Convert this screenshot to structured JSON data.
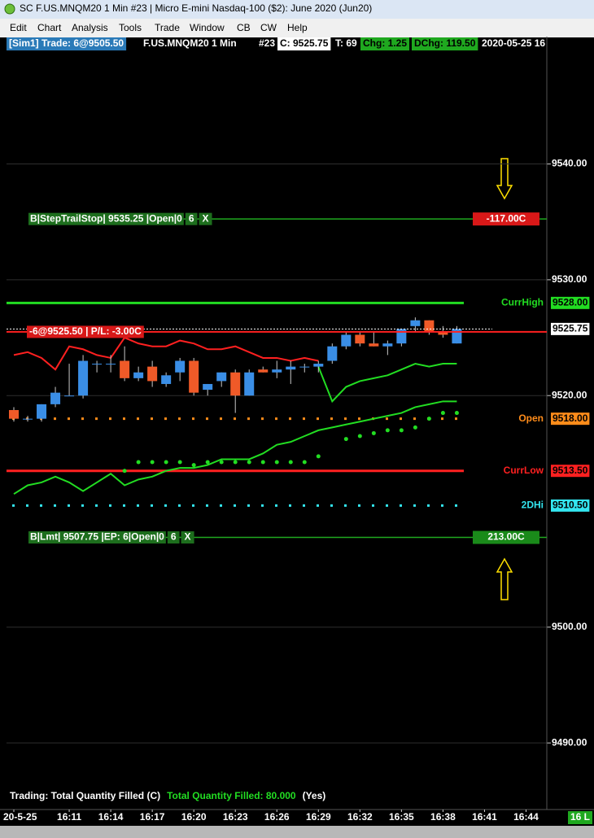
{
  "window": {
    "title": "SC F.US.MNQM20  1 Min   #23 | Micro E-mini Nasdaq-100 ($2): June 2020 (Jun20)",
    "menu": [
      "Edit",
      "Chart",
      "Analysis",
      "Tools",
      "Trade",
      "Window",
      "CB",
      "CW",
      "Help"
    ]
  },
  "header": {
    "account": "[Sim1]  Trade: 6@9505.50",
    "symbol": "F.US.MNQM20  1 Min",
    "bar": "#23",
    "close": "C: 9525.75",
    "ticks": "T: 69",
    "change": "Chg: 1.25",
    "daily_change": "DChg: 119.50",
    "datetime": "2020-05-25  16"
  },
  "chart_data": {
    "type": "candlestick",
    "up_color": "#3a8ee6",
    "down_color": "#f05a28",
    "open": [
      9518.75,
      9518,
      9518,
      9519.25,
      9520,
      9520,
      9522.75,
      9522.75,
      9523,
      9521.5,
      9522.5,
      9521,
      9522,
      9523,
      9520.5,
      9521.25,
      9522,
      9520,
      9522.25,
      9522,
      9522.25,
      9522.5,
      9522.5,
      9523,
      9524.25,
      9525.25,
      9524.5,
      9524.25,
      9524.5,
      9526,
      9526.5,
      9525.5,
      9524.5
    ],
    "high": [
      9519,
      9518.25,
      9519.25,
      9520.75,
      9522.75,
      9523.5,
      9523,
      9523.5,
      9524.25,
      9522.5,
      9523,
      9522,
      9523.25,
      9523.25,
      9521,
      9522,
      9522.25,
      9522.25,
      9522.5,
      9523,
      9523,
      9522.75,
      9523,
      9524.5,
      9525.5,
      9525.5,
      9525.5,
      9524.75,
      9525.75,
      9526.75,
      9526.5,
      9526,
      9526
    ],
    "low": [
      9517.75,
      9517.75,
      9517.75,
      9519,
      9520,
      9519.75,
      9522,
      9522,
      9521.25,
      9521.25,
      9520.75,
      9520.75,
      9521.25,
      9520,
      9520,
      9520.75,
      9518.5,
      9520,
      9522,
      9521.5,
      9521,
      9522,
      9522,
      9522.75,
      9524,
      9524.25,
      9524.25,
      9523.5,
      9524.25,
      9525.5,
      9525.25,
      9525,
      9524.5
    ],
    "close": [
      9518,
      9518,
      9519.25,
      9520.25,
      9520,
      9523,
      9522.75,
      9522.75,
      9521.5,
      9522,
      9521.25,
      9521.75,
      9523,
      9520.25,
      9521,
      9522,
      9520,
      9522,
      9522,
      9522.25,
      9522.5,
      9522.5,
      9522.75,
      9524.25,
      9525.25,
      9524.5,
      9524.25,
      9524.5,
      9525.75,
      9526.5,
      9525.5,
      9525.25,
      9525.75
    ],
    "overlays": [
      {
        "color": "#ff2020",
        "style": "line",
        "values": [
          9523.5,
          9523.75,
          9523.25,
          9522.25,
          9524.25,
          9524,
          9523.5,
          9523.25,
          9525,
          9524.5,
          9524.25,
          9524.25,
          9524.75,
          9524.5,
          9524,
          9524,
          9524.25,
          9523.75,
          9523.25,
          9523.25,
          9523,
          9523.25,
          9523,
          null,
          null,
          null,
          null,
          null,
          null,
          null,
          null,
          null,
          null
        ]
      },
      {
        "color": "#22dd22",
        "style": "line",
        "values": [
          null,
          null,
          null,
          null,
          null,
          null,
          null,
          null,
          null,
          null,
          null,
          null,
          null,
          null,
          null,
          null,
          null,
          null,
          null,
          null,
          null,
          null,
          9522.5,
          9519.5,
          9520.75,
          9521.25,
          9521.5,
          9521.75,
          9522.25,
          9522.75,
          9522.5,
          9522.75,
          9522.75
        ]
      },
      {
        "color": "#22dd22",
        "style": "line",
        "values": [
          9511.5,
          9512.25,
          9512.5,
          9513,
          9512.5,
          9511.75,
          9512.5,
          9513.25,
          9512.25,
          9512.75,
          9513,
          9513.5,
          9513.75,
          9513.75,
          9514,
          9514.5,
          9514.5,
          9514.5,
          9515,
          9515.75,
          9516,
          9516.5,
          9517,
          9517.25,
          9517.5,
          9517.75,
          9518,
          9518.25,
          9518.5,
          9519,
          9519.25,
          9519.5,
          9519.5
        ]
      },
      {
        "color": "#22dd22",
        "style": "dots",
        "values": [
          null,
          null,
          null,
          null,
          null,
          null,
          null,
          null,
          9513.5,
          9514.25,
          9514.25,
          9514.25,
          9514.25,
          9514,
          9514.25,
          9514.25,
          9514.25,
          9514.25,
          9514.25,
          9514.25,
          9514.25,
          9514.25,
          9514.75,
          null,
          9516.25,
          9516.5,
          9516.75,
          9517,
          9517,
          9517.25,
          9518,
          9518.5,
          9518.5
        ]
      }
    ],
    "levels": [
      {
        "label": "CurrHigh",
        "value": 9528,
        "value_label": "9528.00",
        "color": "#22dd22",
        "style": "solid"
      },
      {
        "label": "Open",
        "value": 9518,
        "value_label": "9518.00",
        "color": "#ff8c1a",
        "style": "dots"
      },
      {
        "label": "CurrLow",
        "value": 9513.5,
        "value_label": "9513.50",
        "color": "#ff2020",
        "style": "solid"
      },
      {
        "label": "2DHi",
        "value": 9510.5,
        "value_label": "9510.50",
        "color": "#33e6f0",
        "style": "dots"
      }
    ],
    "orders": [
      {
        "text": "B|StepTrailStop| 9535.25 |Open|0",
        "qty": "6",
        "cancel": "X",
        "price": 9535.25,
        "pl": "-117.00C",
        "pl_color": "#d81818"
      },
      {
        "text": "B|Lmt| 9507.75 |EP: 6|Open|0",
        "qty": "6",
        "cancel": "X",
        "price": 9507.75,
        "pl": "213.00C",
        "pl_color": "#1a8a1a"
      }
    ],
    "position": {
      "text": "-6@9525.50 | P/L: -3.00C",
      "price": 9525.5,
      "last": 9525.75,
      "last_label": "9525.75"
    },
    "xlim": [
      -1,
      38.5
    ],
    "ylim": [
      9484.25,
      9551
    ],
    "yticks": [
      {
        "value": 9540,
        "label": "9540.00"
      },
      {
        "value": 9530,
        "label": "9530.00"
      },
      {
        "value": 9520,
        "label": "9520.00"
      },
      {
        "value": 9500,
        "label": "9500.00"
      },
      {
        "value": 9490,
        "label": "9490.00"
      }
    ],
    "xticks": [
      {
        "value": 0,
        "label": "20-5-25"
      },
      {
        "value": 4,
        "label": "16:11"
      },
      {
        "value": 7,
        "label": "16:14"
      },
      {
        "value": 10,
        "label": "16:17"
      },
      {
        "value": 13,
        "label": "16:20"
      },
      {
        "value": 16,
        "label": "16:23"
      },
      {
        "value": 19,
        "label": "16:26"
      },
      {
        "value": 22,
        "label": "16:29"
      },
      {
        "value": 25,
        "label": "16:32"
      },
      {
        "value": 28,
        "label": "16:35"
      },
      {
        "value": 31,
        "label": "16:38"
      },
      {
        "value": 34,
        "label": "16:41"
      },
      {
        "value": 37,
        "label": "16:44"
      }
    ]
  },
  "status": {
    "trading": "Trading: Total Quantity Filled (C)",
    "filled": "Total Quantity Filled: 80.000",
    "flag": "(Yes)",
    "corner": "16 L"
  }
}
